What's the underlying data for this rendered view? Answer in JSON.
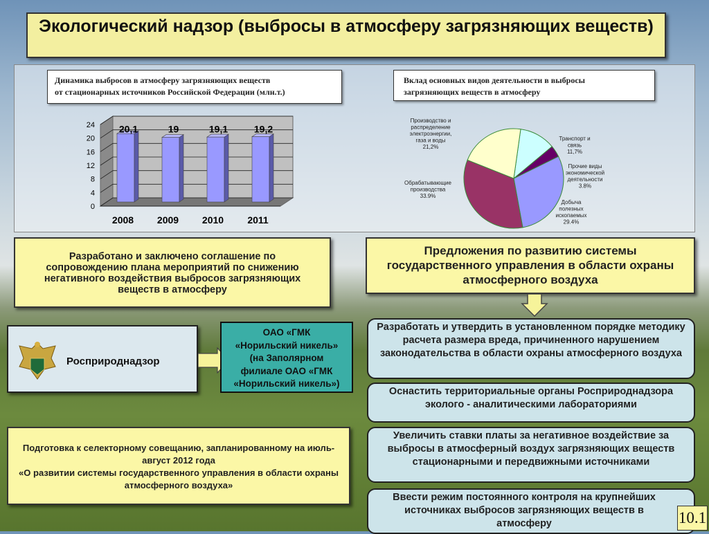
{
  "slide_title": "Экологический надзор (выбросы в атмосферу загрязняющих веществ)",
  "bar_chart_caption": [
    "Динамика выбросов в атмосферу загрязняющих веществ",
    "от стационарных источников Российской Федерации (млн.т.)"
  ],
  "pie_chart_caption": [
    "Вклад основных видов деятельности в выбросы",
    "загрязняющих веществ в атмосферу"
  ],
  "chart_data": [
    {
      "type": "bar",
      "categories": [
        "2008",
        "2009",
        "2010",
        "2011"
      ],
      "values": [
        20.1,
        19,
        19.1,
        19.2
      ],
      "data_labels": [
        "20,1",
        "19",
        "19,1",
        "19,2"
      ],
      "yticks": [
        "0",
        "4",
        "8",
        "12",
        "16",
        "20",
        "24"
      ],
      "ylim": [
        0,
        24
      ],
      "grid": true,
      "color": "#9999ff"
    },
    {
      "type": "pie",
      "slices": [
        {
          "label": "Транспорт и связь",
          "value_label": "11,7%",
          "value": 11.7,
          "color": "#ccffff"
        },
        {
          "label": "Прочие виды экономической деятельности",
          "value_label": "3.8%",
          "value": 3.8,
          "color": "#660066"
        },
        {
          "label": "Добыча полезных ископаемых",
          "value_label": "29.4%",
          "value": 29.4,
          "color": "#9999ff"
        },
        {
          "label": "Обрабатывающие производства",
          "value_label": "33.9%",
          "value": 33.9,
          "color": "#993366"
        },
        {
          "label": "Производство и распределение электроэнергии, газа и воды",
          "value_label": "21,2%",
          "value": 21.2,
          "color": "#ffffcc"
        }
      ]
    }
  ],
  "agreement_box": "Разработано и заключено соглашение по сопровождению плана мероприятий по снижению негативного воздействия выбросов загрязняющих веществ в атмосферу",
  "proposals_header": "Предложения по развитию системы государственного управления в области охраны атмосферного воздуха",
  "agency": "Росприроднадзор",
  "company_box": [
    "ОАО «ГМК",
    "«Норильский никель»",
    "(на Заполярном",
    "филиале ОАО «ГМК",
    "«Норильский никель»)"
  ],
  "meeting_box": [
    "Подготовка к селекторному совещанию, запланированному на июль-август 2012 года",
    "«О развитии системы государственного управления в области охраны атмосферного воздуха»"
  ],
  "proposals": [
    "Разработать и утвердить в установленном порядке методику расчета размера вреда, причиненного нарушением законодательства в области охраны атмосферного воздуха",
    "Оснастить территориальные органы Росприроднадзора эколого - аналитическими лабораториями",
    "Увеличить ставки платы за негативное воздействие за выбросы в атмосферный воздух загрязняющих веществ стационарными и передвижными источниками",
    "Ввести режим постоянного контроля на крупнейших источниках выбросов загрязняющих веществ в атмосферу"
  ],
  "slide_number": "10.1"
}
